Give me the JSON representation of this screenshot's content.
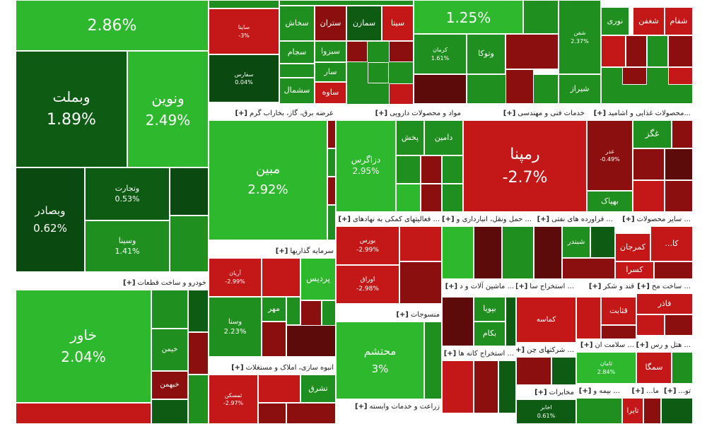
{
  "colors": {
    "bright_green": "#2eb82e",
    "green": "#1f8f1f",
    "dark_green": "#0e5c14",
    "deep_green": "#0a4a10",
    "red": "#c41717",
    "dark_red": "#8b0f0f",
    "maroon": "#5c0a0a",
    "grey": "#7a7a7a",
    "border": "#ffffff"
  },
  "sectors": [
    {
      "label": "خودرو و ساخت قطعات",
      "plus": "[+]"
    },
    {
      "label": "عرضه برق، گاز، بخاراب گرم",
      "plus": "[+]"
    },
    {
      "label": "مواد و محصولات دارویی",
      "plus": "[+]"
    },
    {
      "label": "خدمات فنی و مهندسی",
      "plus": "[+]"
    },
    {
      "label": "محصولات غذایی و اشامید...",
      "plus": "[+]"
    },
    {
      "label": "سرمایه گذاریها",
      "plus": "[+]"
    },
    {
      "label": "فعالیتهای کمکی به نهادهای ...",
      "plus": "[+]"
    },
    {
      "label": "حمل ونقل، انبارداری و ...",
      "plus": "[+]"
    },
    {
      "label": "فراورده های نفتی ...",
      "plus": "[+]"
    },
    {
      "label": "سایر محصولات ...",
      "plus": "[+]"
    },
    {
      "label": "انبوه سازی، املاک و مستغلات",
      "plus": "[+]"
    },
    {
      "label": "منسوجات",
      "plus": "[+]"
    },
    {
      "label": "ماشین آلات و د ...",
      "plus": "[+]"
    },
    {
      "label": "استخراج سا ...",
      "plus": "[+]"
    },
    {
      "label": "قند و شکر",
      "plus": "[+]"
    },
    {
      "label": "ساخت مح ...",
      "plus": "[+]"
    },
    {
      "label": "استخراج کانه ها ...",
      "plus": "[+]"
    },
    {
      "label": "شرکتهای چن ...",
      "plus": "[+]"
    },
    {
      "label": "سلامت ان ...",
      "plus": "[+]"
    },
    {
      "label": "هتل و رس ...",
      "plus": "[+]"
    },
    {
      "label": "زراعت و خدمات وابسته",
      "plus": "[+]"
    },
    {
      "label": "مخابرات",
      "plus": "[+]"
    },
    {
      "label": "بیمه و ...",
      "plus": "[+]"
    },
    {
      "label": "...تو",
      "plus": "[+]"
    },
    {
      "label": "...ما",
      "plus": "[+]"
    }
  ],
  "tiles": [
    {
      "name": "",
      "pct": "2.86%"
    },
    {
      "name": "وبملت",
      "pct": "1.89%"
    },
    {
      "name": "ونوین",
      "pct": "2.49%"
    },
    {
      "name": "وبصادر",
      "pct": "0.62%"
    },
    {
      "name": "وتجارت",
      "pct": "0.53%"
    },
    {
      "name": "وسینا",
      "pct": "1.41%"
    },
    {
      "name": "خاور",
      "pct": "2.04%"
    },
    {
      "name": "خبهمن",
      "pct": ""
    },
    {
      "name": "خیمن",
      "pct": ""
    },
    {
      "name": "مبین",
      "pct": "2.92%"
    },
    {
      "name": "دزاگرس",
      "pct": "2.95%"
    },
    {
      "name": "پخش",
      "pct": ""
    },
    {
      "name": "دامین",
      "pct": ""
    },
    {
      "name": "رمپنا",
      "pct": "-2.7%"
    },
    {
      "name": "غگز",
      "pct": ""
    },
    {
      "name": "غدر",
      "pct": "-0.49%"
    },
    {
      "name": "بهپاک",
      "pct": ""
    },
    {
      "name": "پردیس",
      "pct": ""
    },
    {
      "name": "مهر",
      "pct": ""
    },
    {
      "name": "وسنا",
      "pct": "2.23%"
    },
    {
      "name": "آریان",
      "pct": "-2.99%"
    },
    {
      "name": "بورس",
      "pct": "-2.99%"
    },
    {
      "name": "اوراق",
      "pct": "-2.98%"
    },
    {
      "name": "شبندر",
      "pct": ""
    },
    {
      "name": "کمرجان",
      "pct": ""
    },
    {
      "name": "کسرا",
      "pct": ""
    },
    {
      "name": "...کا",
      "pct": ""
    },
    {
      "name": "تشرق",
      "pct": ""
    },
    {
      "name": "ثمسکن",
      "pct": "-2.97%"
    },
    {
      "name": "محتشم",
      "pct": "3%"
    },
    {
      "name": "بپویا",
      "pct": ""
    },
    {
      "name": "بکام",
      "pct": ""
    },
    {
      "name": "کماسه",
      "pct": ""
    },
    {
      "name": "قثابت",
      "pct": ""
    },
    {
      "name": "فاذر",
      "pct": ""
    },
    {
      "name": "ثامان",
      "pct": "2.84%"
    },
    {
      "name": "سمگا",
      "pct": ""
    },
    {
      "name": "اخابر",
      "pct": "0.61%"
    },
    {
      "name": "تایرا",
      "pct": ""
    },
    {
      "name": "",
      "pct": "1.25%"
    },
    {
      "name": "وتوکا",
      "pct": ""
    },
    {
      "name": "شفن",
      "pct": "2.37%"
    },
    {
      "name": "شفام",
      "pct": ""
    },
    {
      "name": "شغفن",
      "pct": ""
    },
    {
      "name": "نوری",
      "pct": ""
    },
    {
      "name": "شیراز",
      "pct": ""
    },
    {
      "name": "سخاش",
      "pct": ""
    },
    {
      "name": "ستران",
      "pct": ""
    },
    {
      "name": "سمازن",
      "pct": ""
    },
    {
      "name": "سیتا",
      "pct": ""
    },
    {
      "name": "سبزوا",
      "pct": ""
    },
    {
      "name": "سجام",
      "pct": ""
    },
    {
      "name": "سشمال",
      "pct": ""
    },
    {
      "name": "سار",
      "pct": ""
    },
    {
      "name": "ساوه",
      "pct": ""
    },
    {
      "name": "ساینا",
      "pct": "-3%"
    },
    {
      "name": "سفارس",
      "pct": "0.04%"
    },
    {
      "name": "کرمان",
      "pct": "1.61%"
    }
  ]
}
